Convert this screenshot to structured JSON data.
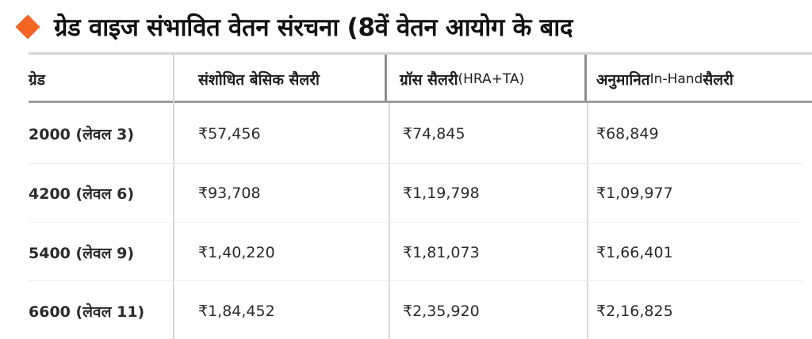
{
  "title": "ग्रेड वाइज संभावित वेतन संरचना (8वें वेतन आयोग के बाद",
  "accent_color": "#f26522",
  "table": {
    "headers": [
      {
        "main": "ग्रेड",
        "extra": ""
      },
      {
        "main": "संशोधित बेसिक सैलरी",
        "extra": ""
      },
      {
        "main": "ग्रॉस सैलरी ",
        "extra": "(HRA+TA)"
      },
      {
        "main": "अनुमानित ",
        "extra": "In-Hand",
        "tail": " सैलरी"
      }
    ],
    "rows": [
      {
        "grade": "2000 (लेवल 3)",
        "basic": "₹57,456",
        "gross": "₹74,845",
        "inhand": "₹68,849"
      },
      {
        "grade": "4200 (लेवल 6)",
        "basic": "₹93,708",
        "gross": "₹1,19,798",
        "inhand": "₹1,09,977"
      },
      {
        "grade": "5400 (लेवल 9)",
        "basic": "₹1,40,220",
        "gross": "₹1,81,073",
        "inhand": "₹1,66,401"
      },
      {
        "grade": "6600 (लेवल 11)",
        "basic": "₹1,84,452",
        "gross": "₹2,35,920",
        "inhand": "₹2,16,825"
      }
    ]
  }
}
